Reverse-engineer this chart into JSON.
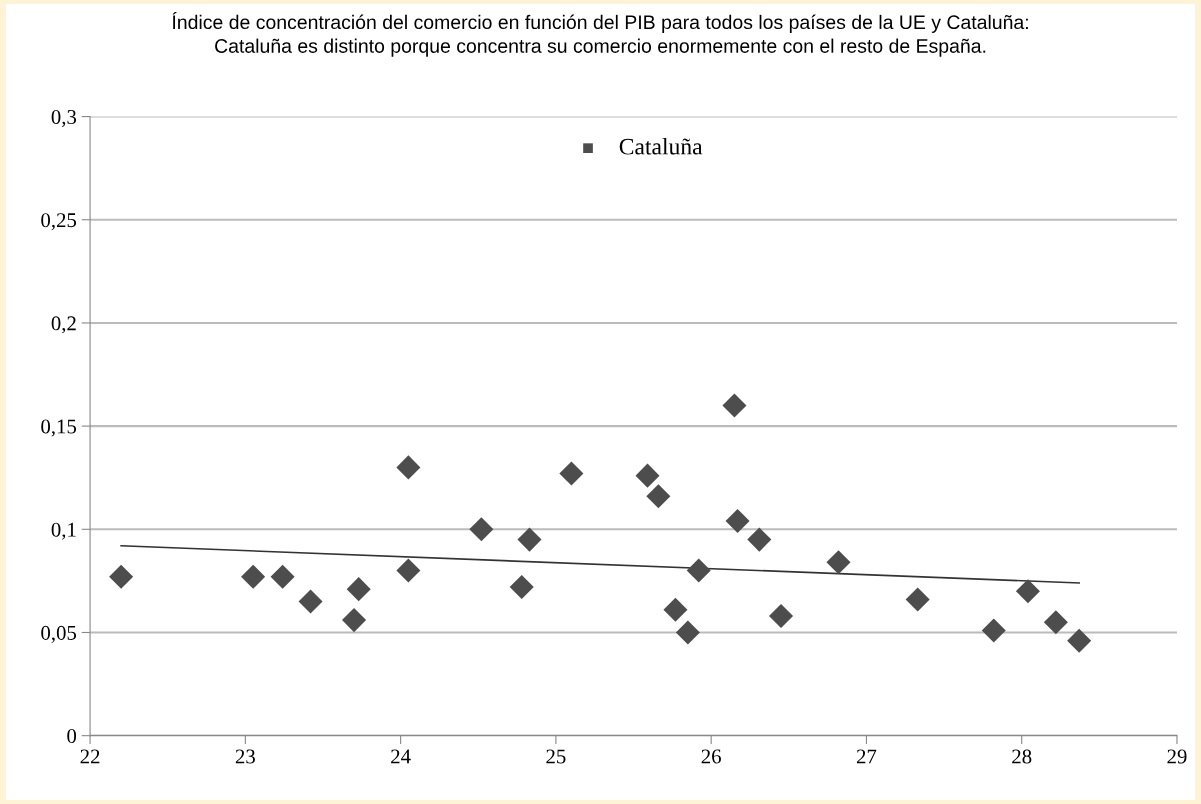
{
  "chart_data": {
    "type": "scatter",
    "title": "Índice de concentración del comercio en función del PIB para todos los países de la UE y Cataluña:\nCataluña es distinto porque concentra su comercio enormemente con el resto de España.",
    "xlim": [
      22,
      29
    ],
    "xticks": [
      22,
      23,
      24,
      25,
      26,
      27,
      28,
      29
    ],
    "ylim": [
      0,
      0.3
    ],
    "yticks": [
      {
        "value": 0,
        "label": "0"
      },
      {
        "value": 0.05,
        "label": "0,05"
      },
      {
        "value": 0.1,
        "label": "0,1"
      },
      {
        "value": 0.15,
        "label": "0,15"
      },
      {
        "value": 0.2,
        "label": "0,2"
      },
      {
        "value": 0.25,
        "label": "0,25"
      },
      {
        "value": 0.3,
        "label": "0,3"
      }
    ],
    "grid": "y",
    "legend": "top",
    "series": [
      {
        "color": "#4d4d4d",
        "marker": "diamond",
        "x": [
          22.2,
          23.05,
          23.24,
          23.42,
          23.7,
          23.73,
          24.05,
          24.05,
          24.52,
          24.78,
          24.83,
          25.1,
          25.59,
          25.66,
          25.77,
          25.85,
          25.92,
          26.15,
          26.17,
          26.31,
          26.45,
          26.82,
          27.33,
          27.82,
          28.04,
          28.22,
          28.37
        ],
        "values": [
          0.077,
          0.077,
          0.077,
          0.065,
          0.056,
          0.071,
          0.08,
          0.13,
          0.1,
          0.072,
          0.095,
          0.127,
          0.126,
          0.116,
          0.061,
          0.05,
          0.08,
          0.16,
          0.104,
          0.095,
          0.058,
          0.084,
          0.066,
          0.051,
          0.07,
          0.055,
          0.046
        ]
      },
      {
        "type": "line",
        "color": "#333333",
        "marker": "none",
        "x": [
          22.2,
          28.37
        ],
        "values": [
          0.092,
          0.074
        ]
      },
      {
        "type": "scatter",
        "name": "Cataluña",
        "color": "#4d4d4d",
        "marker": "square",
        "x": [
          null
        ],
        "values": [
          null
        ]
      }
    ]
  }
}
